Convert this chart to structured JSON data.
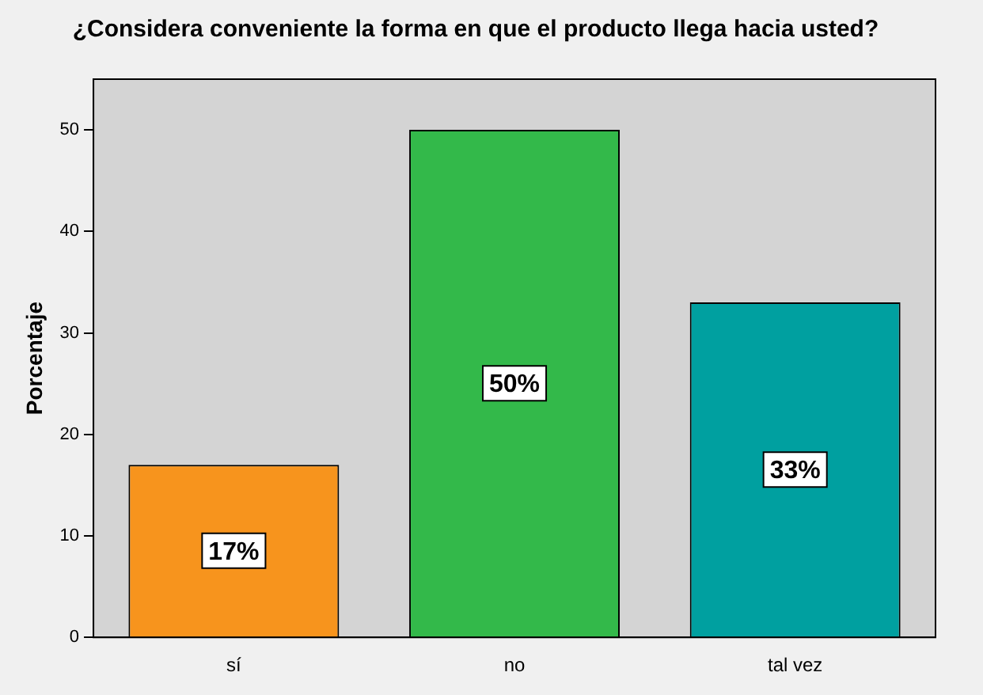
{
  "chart_data": {
    "type": "bar",
    "title": "¿Considera conveniente la forma en que el producto llega hacia usted?",
    "ylabel": "Porcentaje",
    "categories": [
      "sí",
      "no",
      "tal vez"
    ],
    "values": [
      17,
      50,
      33
    ],
    "colors": [
      "#f7941d",
      "#33b94a",
      "#00a0a0"
    ],
    "value_labels": [
      "17%",
      "50%",
      "33%"
    ],
    "ylim": [
      0,
      55
    ],
    "yticks": [
      0,
      10,
      20,
      30,
      40,
      50
    ],
    "grid": false,
    "legend": false
  }
}
